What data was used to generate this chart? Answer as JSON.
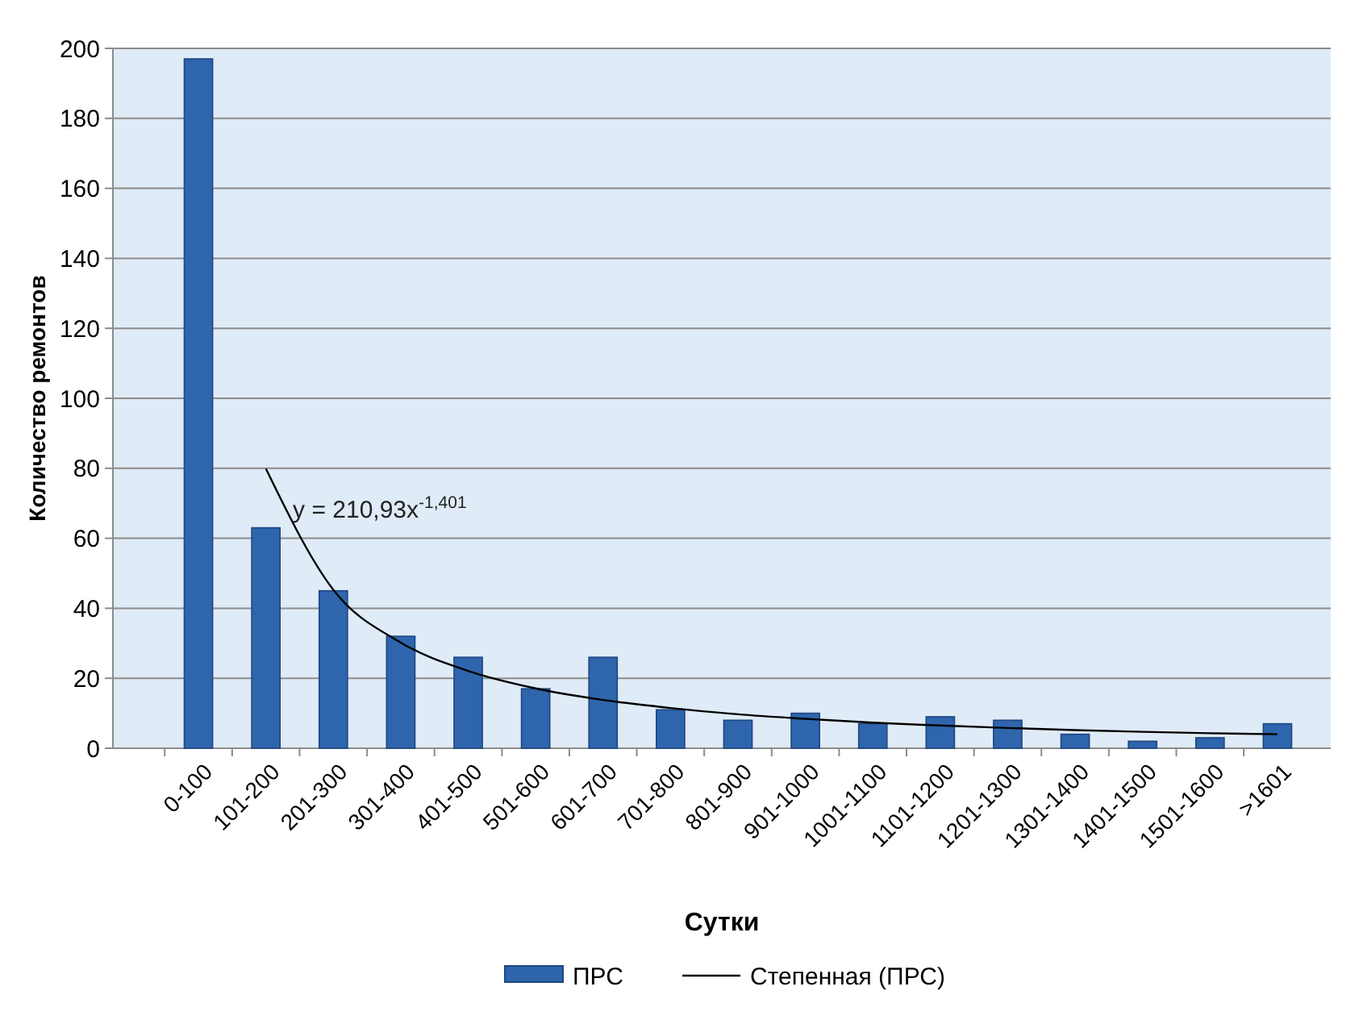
{
  "chart_data": {
    "type": "bar",
    "xlabel": "Сутки",
    "ylabel": "Количество ремонтов",
    "categories": [
      "0-100",
      "101-200",
      "201-300",
      "301-400",
      "401-500",
      "501-600",
      "601-700",
      "701-800",
      "801-900",
      "901-1000",
      "1001-1100",
      "1101-1200",
      "1201-1300",
      "1301-1400",
      "1401-1500",
      "1501-1600",
      ">1601"
    ],
    "series": [
      {
        "name": "ПРС",
        "color": "#2f65ad",
        "values": [
          197,
          63,
          45,
          32,
          26,
          17,
          26,
          11,
          8,
          10,
          7,
          9,
          8,
          4,
          2,
          3,
          7
        ]
      },
      {
        "name": "Степенная (ПРС)",
        "type": "line",
        "color": "#000000",
        "values": [
          null,
          79.9,
          45.3,
          30.2,
          22.1,
          17.1,
          13.8,
          11.5,
          9.7,
          8.4,
          7.3,
          6.5,
          5.8,
          5.2,
          4.7,
          4.3,
          4.0
        ]
      }
    ],
    "ylim": [
      0,
      200
    ],
    "yticks": [
      0,
      20,
      40,
      60,
      80,
      100,
      120,
      140,
      160,
      180,
      200
    ],
    "grid": "y",
    "legend": "bottom",
    "marker": "none",
    "line_style": "solid",
    "annotations": [
      "y = 210,93x$^{-1,401}$"
    ]
  }
}
